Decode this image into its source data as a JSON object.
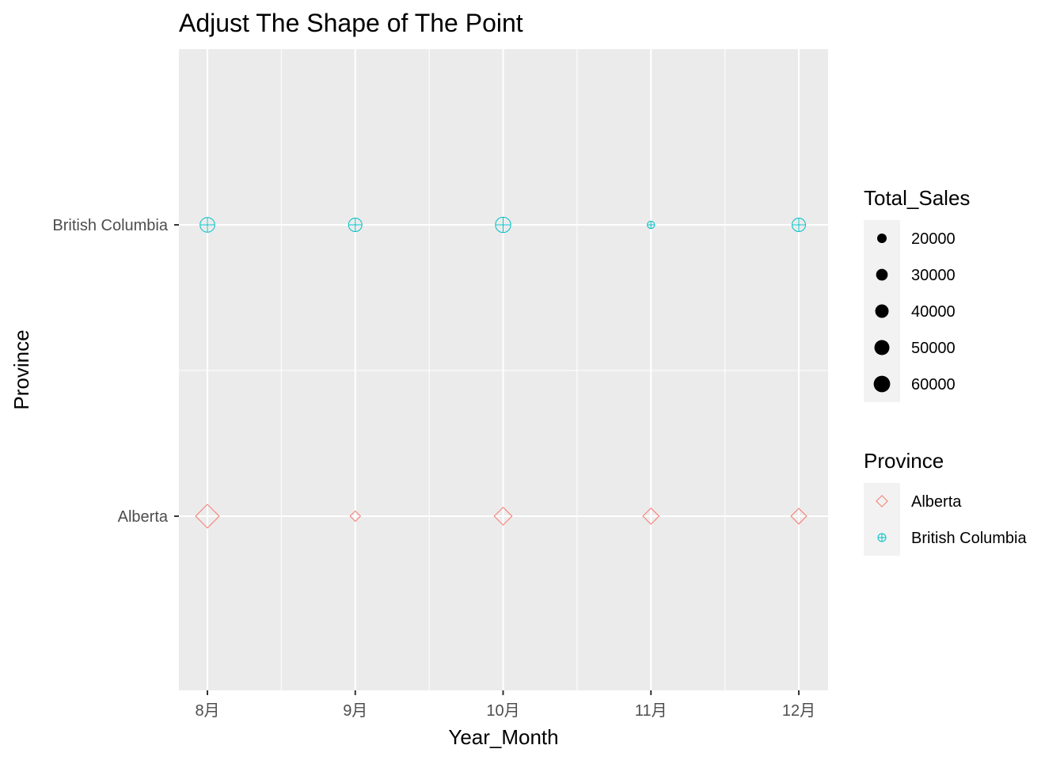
{
  "chart_data": {
    "type": "scatter",
    "title": "Adjust The Shape of The Point",
    "xlabel": "Year_Month",
    "ylabel": "Province",
    "x_categories": [
      "8月",
      "9月",
      "10月",
      "11月",
      "12月"
    ],
    "y_categories": [
      "Alberta",
      "British Columbia"
    ],
    "grid": true,
    "series": [
      {
        "name": "Alberta",
        "shape": "diamond-open",
        "color": "#F8766D",
        "points": [
          {
            "x": "8月",
            "y": "Alberta",
            "size_value": 62000
          },
          {
            "x": "9月",
            "y": "Alberta",
            "size_value": 12000
          },
          {
            "x": "10月",
            "y": "Alberta",
            "size_value": 35000
          },
          {
            "x": "11月",
            "y": "Alberta",
            "size_value": 29000
          },
          {
            "x": "12月",
            "y": "Alberta",
            "size_value": 27000
          }
        ]
      },
      {
        "name": "British Columbia",
        "shape": "circle-plus",
        "color": "#00BFC4",
        "points": [
          {
            "x": "8月",
            "y": "British Columbia",
            "size_value": 48000
          },
          {
            "x": "9月",
            "y": "British Columbia",
            "size_value": 40000
          },
          {
            "x": "10月",
            "y": "British Columbia",
            "size_value": 52000
          },
          {
            "x": "11月",
            "y": "British Columbia",
            "size_value": 12000
          },
          {
            "x": "12月",
            "y": "British Columbia",
            "size_value": 40000
          }
        ]
      }
    ],
    "legends": {
      "size": {
        "title": "Total_Sales",
        "breaks": [
          20000,
          30000,
          40000,
          50000,
          60000
        ],
        "labels": [
          "20000",
          "30000",
          "40000",
          "50000",
          "60000"
        ]
      },
      "shape": {
        "title": "Province",
        "labels": [
          "Alberta",
          "British Columbia"
        ]
      },
      "placement": "right"
    },
    "colors": {
      "panel_background": "#EBEBEB",
      "grid": "#FFFFFF",
      "legend_key_background": "#F2F2F2"
    }
  }
}
